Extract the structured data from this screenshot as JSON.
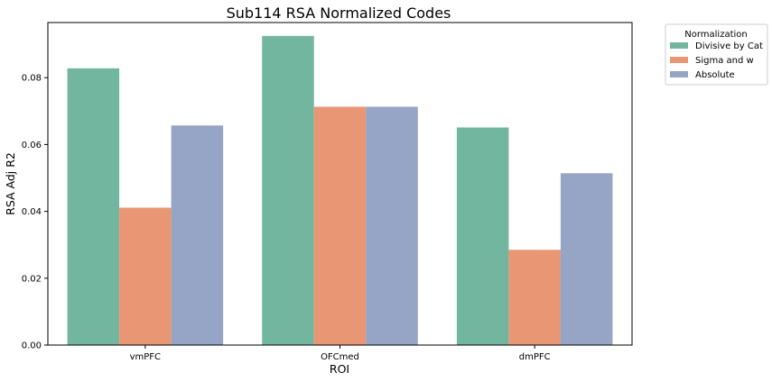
{
  "chart_data": {
    "type": "bar",
    "title": "Sub114 RSA Normalized Codes",
    "xlabel": "ROI",
    "ylabel": "RSA Adj R2",
    "categories": [
      "vmPFC",
      "OFCmed",
      "dmPFC"
    ],
    "series": [
      {
        "name": "Divisive by Cat",
        "values": [
          0.0828,
          0.0925,
          0.0651
        ],
        "color": "#73b6a0"
      },
      {
        "name": "Sigma and w",
        "values": [
          0.0411,
          0.0713,
          0.0285
        ],
        "color": "#e99675"
      },
      {
        "name": "Absolute",
        "values": [
          0.0657,
          0.0713,
          0.0514
        ],
        "color": "#96a5c5"
      }
    ],
    "ylim": [
      0,
      0.0965
    ],
    "yticks": [
      0,
      0.02,
      0.04,
      0.06,
      0.08
    ],
    "ytick_labels": [
      "0.00",
      "0.02",
      "0.04",
      "0.06",
      "0.08"
    ],
    "grid": false,
    "legend": {
      "title": "Normalization",
      "placement": "outside-top-right"
    }
  }
}
